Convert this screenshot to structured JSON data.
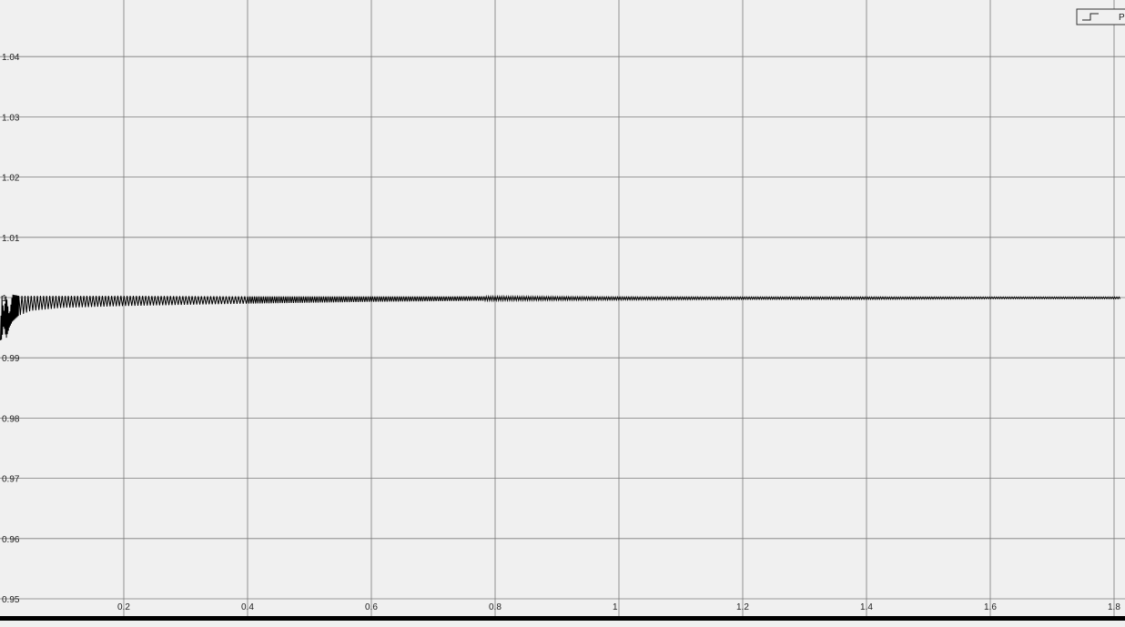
{
  "chart_data": {
    "type": "line",
    "title": "",
    "xlabel": "",
    "ylabel": "",
    "xlim": [
      0,
      1.81
    ],
    "ylim": [
      0.95,
      1.05
    ],
    "grid": true,
    "x_ticks": [
      0.2,
      0.4,
      0.6,
      0.8,
      1,
      1.2,
      1.4,
      1.6,
      1.8
    ],
    "x_tick_labels": [
      "0.2",
      "0.4",
      "0.6",
      "0.8",
      "1",
      "1.2",
      "1.4",
      "1.6",
      "1.8"
    ],
    "y_ticks": [
      0.95,
      0.96,
      0.97,
      0.98,
      0.99,
      1,
      1.01,
      1.02,
      1.03,
      1.04
    ],
    "y_tick_labels": [
      "0.95",
      "0.96",
      "0.97",
      "0.98",
      "0.99",
      "1",
      "1.01",
      "1.02",
      "1.03",
      "1.04"
    ],
    "legend": {
      "placement": "top-right",
      "entries": [
        "P"
      ]
    },
    "series": [
      {
        "color": "#000000",
        "style": "oscillating-settling",
        "x": [
          0,
          0.003,
          0.006,
          0.01,
          0.015,
          0.02,
          0.03,
          0.05,
          0.1,
          0.2,
          0.4,
          0.6,
          0.8,
          1.0,
          1.2,
          1.4,
          1.6,
          1.81
        ],
        "upper": [
          0.993,
          1.0005,
          0.9975,
          1.0005,
          0.997,
          1.0005,
          1.0003,
          1.0003,
          1.0003,
          1.0003,
          1.0002,
          1.0002,
          1.0002,
          1.0001,
          1.0001,
          1.0001,
          1.0001,
          1.0001
        ],
        "lower": [
          0.993,
          0.993,
          0.9955,
          0.9932,
          0.995,
          0.996,
          0.997,
          0.9978,
          0.9983,
          0.9986,
          0.999,
          0.9993,
          0.9995,
          0.9996,
          0.9997,
          0.9997,
          0.9998,
          0.9998
        ]
      }
    ]
  }
}
